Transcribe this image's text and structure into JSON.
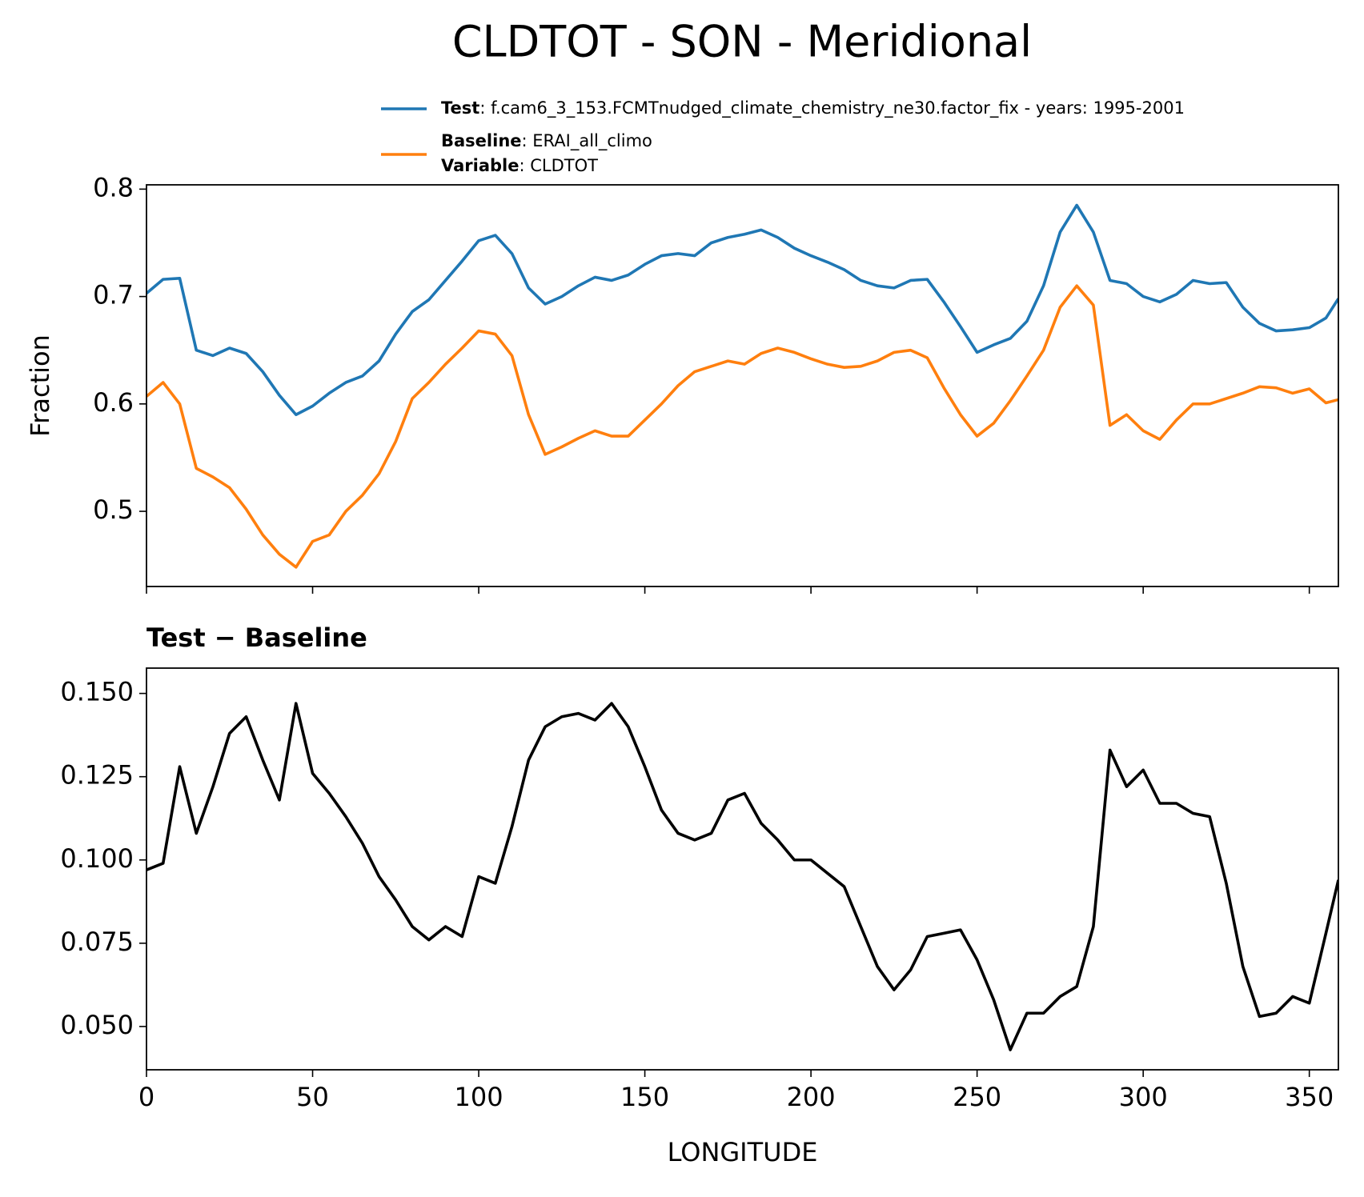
{
  "title": "CLDTOT - SON - Meridional",
  "chart_data": [
    {
      "type": "line",
      "ylabel": "Fraction",
      "x": [
        0,
        5,
        10,
        15,
        20,
        25,
        30,
        35,
        40,
        45,
        50,
        55,
        60,
        65,
        70,
        75,
        80,
        85,
        90,
        95,
        100,
        105,
        110,
        115,
        120,
        125,
        130,
        135,
        140,
        145,
        150,
        155,
        160,
        165,
        170,
        175,
        180,
        185,
        190,
        195,
        200,
        205,
        210,
        215,
        220,
        225,
        230,
        235,
        240,
        245,
        250,
        255,
        260,
        265,
        270,
        275,
        280,
        285,
        290,
        295,
        300,
        305,
        310,
        315,
        320,
        325,
        330,
        335,
        340,
        345,
        350,
        355,
        358.75
      ],
      "series": [
        {
          "name": "Test",
          "detail": ": f.cam6_3_153.FCMTnudged_climate_chemistry_ne30.factor_fix - years: 1995-2001",
          "color": "#1f77b4",
          "values": [
            0.703,
            0.716,
            0.717,
            0.65,
            0.645,
            0.652,
            0.647,
            0.63,
            0.608,
            0.59,
            0.598,
            0.61,
            0.62,
            0.626,
            0.64,
            0.665,
            0.686,
            0.697,
            0.715,
            0.733,
            0.752,
            0.757,
            0.74,
            0.708,
            0.693,
            0.7,
            0.71,
            0.718,
            0.715,
            0.72,
            0.73,
            0.738,
            0.74,
            0.738,
            0.75,
            0.755,
            0.758,
            0.762,
            0.755,
            0.745,
            0.738,
            0.732,
            0.725,
            0.715,
            0.71,
            0.708,
            0.715,
            0.716,
            0.695,
            0.672,
            0.648,
            0.655,
            0.661,
            0.677,
            0.71,
            0.76,
            0.785,
            0.76,
            0.715,
            0.712,
            0.7,
            0.695,
            0.702,
            0.715,
            0.712,
            0.713,
            0.69,
            0.675,
            0.668,
            0.669,
            0.671,
            0.68,
            0.698
          ]
        },
        {
          "name": "Baseline",
          "detail": ": ERAI_all_climo",
          "color": "#ff7f0e",
          "values": [
            0.607,
            0.62,
            0.6,
            0.54,
            0.532,
            0.522,
            0.502,
            0.478,
            0.46,
            0.448,
            0.472,
            0.478,
            0.5,
            0.515,
            0.535,
            0.565,
            0.605,
            0.62,
            0.637,
            0.652,
            0.668,
            0.665,
            0.645,
            0.59,
            0.553,
            0.56,
            0.568,
            0.575,
            0.57,
            0.57,
            0.585,
            0.6,
            0.617,
            0.63,
            0.635,
            0.64,
            0.637,
            0.647,
            0.652,
            0.648,
            0.642,
            0.637,
            0.634,
            0.635,
            0.64,
            0.648,
            0.65,
            0.643,
            0.615,
            0.59,
            0.57,
            0.582,
            0.603,
            0.626,
            0.65,
            0.69,
            0.71,
            0.692,
            0.58,
            0.59,
            0.575,
            0.567,
            0.585,
            0.6,
            0.6,
            0.605,
            0.61,
            0.616,
            0.615,
            0.61,
            0.614,
            0.601,
            0.604
          ]
        }
      ],
      "legend_extra": {
        "key": "Variable",
        "detail": ": CLDTOT"
      },
      "xlim": [
        0,
        358.75
      ],
      "xticks": [
        0,
        50,
        100,
        150,
        200,
        250,
        300,
        350
      ],
      "ylim": [
        0.43,
        0.804
      ],
      "yticks": [
        0.5,
        0.6,
        0.7,
        0.8
      ]
    },
    {
      "type": "line",
      "title": "Test − Baseline",
      "xlabel": "LONGITUDE",
      "x": [
        0,
        5,
        10,
        15,
        20,
        25,
        30,
        35,
        40,
        45,
        50,
        55,
        60,
        65,
        70,
        75,
        80,
        85,
        90,
        95,
        100,
        105,
        110,
        115,
        120,
        125,
        130,
        135,
        140,
        145,
        150,
        155,
        160,
        165,
        170,
        175,
        180,
        185,
        190,
        195,
        200,
        205,
        210,
        215,
        220,
        225,
        230,
        235,
        240,
        245,
        250,
        255,
        260,
        265,
        270,
        275,
        280,
        285,
        290,
        295,
        300,
        305,
        310,
        315,
        320,
        325,
        330,
        335,
        340,
        345,
        350,
        355,
        358.75
      ],
      "series": [
        {
          "color": "#000000",
          "values": [
            0.097,
            0.099,
            0.128,
            0.108,
            0.122,
            0.138,
            0.143,
            0.13,
            0.118,
            0.147,
            0.126,
            0.12,
            0.113,
            0.105,
            0.095,
            0.088,
            0.08,
            0.076,
            0.08,
            0.077,
            0.095,
            0.093,
            0.11,
            0.13,
            0.14,
            0.143,
            0.144,
            0.142,
            0.147,
            0.14,
            0.128,
            0.115,
            0.108,
            0.106,
            0.108,
            0.118,
            0.12,
            0.111,
            0.106,
            0.1,
            0.1,
            0.096,
            0.092,
            0.08,
            0.068,
            0.061,
            0.067,
            0.077,
            0.078,
            0.079,
            0.07,
            0.058,
            0.043,
            0.054,
            0.054,
            0.059,
            0.062,
            0.08,
            0.133,
            0.122,
            0.127,
            0.117,
            0.117,
            0.114,
            0.113,
            0.093,
            0.068,
            0.053,
            0.054,
            0.059,
            0.057,
            0.078,
            0.094
          ]
        }
      ],
      "xlim": [
        0,
        358.75
      ],
      "xticks": [
        0,
        50,
        100,
        150,
        200,
        250,
        300,
        350
      ],
      "ylim": [
        0.037,
        0.1576
      ],
      "yticks": [
        {
          "value": 0.05,
          "label": "0.050"
        },
        {
          "value": 0.075,
          "label": "0.075"
        },
        {
          "value": 0.1,
          "label": "0.100"
        },
        {
          "value": 0.125,
          "label": "0.125"
        },
        {
          "value": 0.15,
          "label": "0.150"
        }
      ]
    }
  ]
}
